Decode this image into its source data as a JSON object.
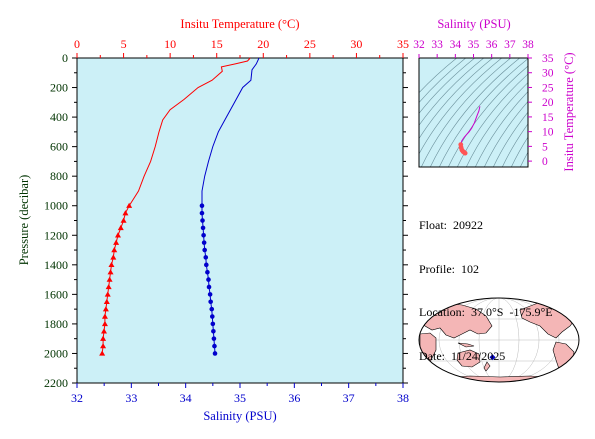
{
  "colors": {
    "temperature": "#ff0000",
    "salinity": "#0000cc",
    "pressure_axis": "#003300",
    "ts_axis": "#cc00cc",
    "plot_bg": "#ccf0f7",
    "land": "#f4b6b6",
    "float_marker": "#0000cc"
  },
  "chart_data": [
    {
      "type": "line",
      "name": "profile",
      "top_axis": {
        "label": "Insitu Temperature (°C)",
        "range": [
          0,
          35
        ],
        "ticks": [
          "0",
          "5",
          "10",
          "15",
          "20",
          "25",
          "30",
          "35"
        ]
      },
      "bottom_axis": {
        "label": "Salinity (PSU)",
        "range": [
          32,
          38
        ],
        "ticks": [
          "32",
          "33",
          "34",
          "35",
          "36",
          "37",
          "38"
        ]
      },
      "left_axis": {
        "label": "Pressure (decibar)",
        "range": [
          0,
          2200
        ],
        "inverted": true,
        "ticks": [
          "0",
          "200",
          "400",
          "600",
          "800",
          "1000",
          "1200",
          "1400",
          "1600",
          "1800",
          "2000",
          "2200"
        ]
      },
      "grid": false,
      "series": [
        {
          "quantity": "temperature",
          "axis": "top",
          "marker_from_pressure": 1000,
          "points": [
            [
              18.6,
              0
            ],
            [
              18.3,
              20
            ],
            [
              17.0,
              40
            ],
            [
              15.5,
              60
            ],
            [
              15.6,
              90
            ],
            [
              14.5,
              150
            ],
            [
              13.0,
              200
            ],
            [
              11.5,
              280
            ],
            [
              10.0,
              350
            ],
            [
              9.2,
              420
            ],
            [
              8.8,
              500
            ],
            [
              8.4,
              600
            ],
            [
              7.9,
              700
            ],
            [
              7.2,
              800
            ],
            [
              6.6,
              900
            ],
            [
              5.6,
              1000
            ],
            [
              5.2,
              1050
            ],
            [
              5.0,
              1100
            ],
            [
              4.7,
              1150
            ],
            [
              4.4,
              1200
            ],
            [
              4.2,
              1250
            ],
            [
              4.0,
              1300
            ],
            [
              3.9,
              1350
            ],
            [
              3.7,
              1400
            ],
            [
              3.6,
              1450
            ],
            [
              3.5,
              1500
            ],
            [
              3.4,
              1550
            ],
            [
              3.3,
              1600
            ],
            [
              3.2,
              1650
            ],
            [
              3.1,
              1700
            ],
            [
              3.0,
              1750
            ],
            [
              3.0,
              1800
            ],
            [
              2.9,
              1850
            ],
            [
              2.8,
              1900
            ],
            [
              2.8,
              1950
            ],
            [
              2.7,
              2000
            ]
          ]
        },
        {
          "quantity": "salinity",
          "axis": "bottom",
          "marker_from_pressure": 1000,
          "points": [
            [
              35.35,
              0
            ],
            [
              35.3,
              40
            ],
            [
              35.22,
              80
            ],
            [
              35.2,
              150
            ],
            [
              35.05,
              200
            ],
            [
              34.9,
              300
            ],
            [
              34.75,
              400
            ],
            [
              34.6,
              500
            ],
            [
              34.5,
              600
            ],
            [
              34.42,
              700
            ],
            [
              34.35,
              800
            ],
            [
              34.3,
              900
            ],
            [
              34.3,
              1000
            ],
            [
              34.3,
              1050
            ],
            [
              34.31,
              1100
            ],
            [
              34.32,
              1150
            ],
            [
              34.33,
              1200
            ],
            [
              34.34,
              1250
            ],
            [
              34.35,
              1300
            ],
            [
              34.37,
              1350
            ],
            [
              34.38,
              1400
            ],
            [
              34.4,
              1450
            ],
            [
              34.42,
              1500
            ],
            [
              34.43,
              1550
            ],
            [
              34.45,
              1600
            ],
            [
              34.46,
              1650
            ],
            [
              34.48,
              1700
            ],
            [
              34.49,
              1750
            ],
            [
              34.5,
              1800
            ],
            [
              34.51,
              1850
            ],
            [
              34.52,
              1900
            ],
            [
              34.53,
              1950
            ],
            [
              34.54,
              2000
            ]
          ]
        }
      ]
    },
    {
      "type": "scatter",
      "name": "ts_diagram",
      "top_axis": {
        "label": "Salinity (PSU)",
        "range": [
          32,
          38
        ],
        "ticks": [
          "32",
          "33",
          "34",
          "35",
          "36",
          "37",
          "38"
        ]
      },
      "right_axis": {
        "label": "Insitu Temperature (°C)",
        "range": [
          -2,
          35
        ],
        "ticks": [
          "0",
          "5",
          "10",
          "15",
          "20",
          "25",
          "30",
          "35"
        ]
      },
      "density_contours": true,
      "grid": false,
      "series": [
        {
          "quantity": "t-s",
          "points": [
            [
              35.35,
              18.6
            ],
            [
              35.3,
              17.0
            ],
            [
              35.2,
              15.5
            ],
            [
              35.05,
              13.0
            ],
            [
              34.9,
              11.2
            ],
            [
              34.75,
              9.9
            ],
            [
              34.6,
              8.9
            ],
            [
              34.5,
              8.2
            ],
            [
              34.42,
              7.5
            ],
            [
              34.35,
              6.8
            ],
            [
              34.3,
              5.6
            ],
            [
              34.32,
              4.6
            ],
            [
              34.36,
              3.8
            ],
            [
              34.42,
              3.3
            ],
            [
              34.48,
              3.0
            ],
            [
              34.54,
              2.7
            ]
          ]
        }
      ]
    }
  ],
  "info": {
    "float": "Float:  20922",
    "profile": "Profile:  102",
    "location": "Location:  37.0°S  -175.9°E",
    "date": "Date:  11/24/2025"
  },
  "map": {
    "float_location": {
      "lat": -37.0,
      "lon": -175.9
    }
  }
}
